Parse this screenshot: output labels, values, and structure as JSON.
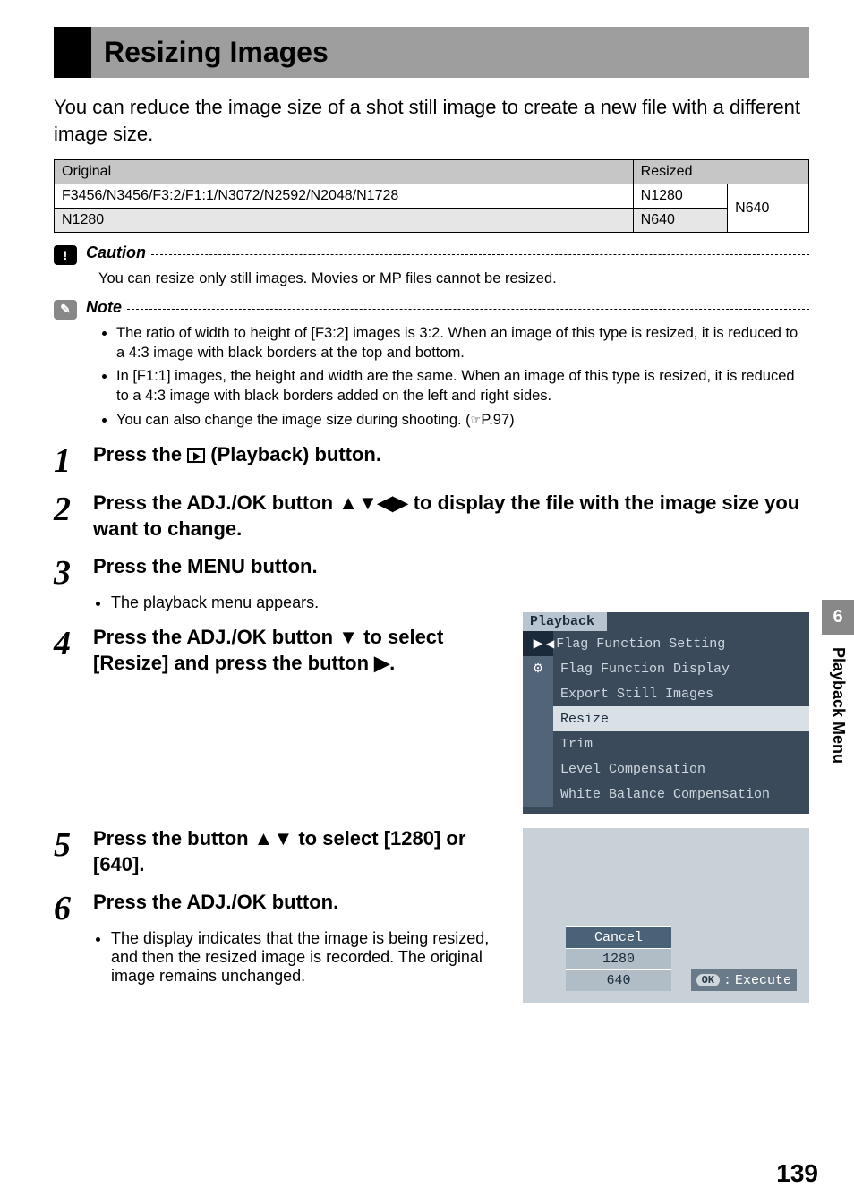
{
  "header": {
    "title": "Resizing Images"
  },
  "intro": "You can reduce the image size of a shot still image to create a new file with a different image size.",
  "table": {
    "col_original": "Original",
    "col_resized": "Resized",
    "row1_orig": "F3456/N3456/F3:2/F1:1/N3072/N2592/N2048/N1728",
    "row1_r1": "N1280",
    "row1_r2": "N640",
    "row2_orig": "N1280",
    "row2_resized": "N640"
  },
  "caution": {
    "label": "Caution",
    "body": "You can resize only still images. Movies or MP files cannot be resized."
  },
  "note": {
    "label": "Note",
    "li1": "The ratio of width to height of [F3:2] images is 3:2. When an image of this type is resized, it is reduced to a 4:3 image with black borders at the top and bottom.",
    "li2": "In [F1:1] images, the height and width are the same. When an image of this type is resized, it is reduced to a 4:3 image with black borders added on the left and right sides.",
    "li3a": "You can also change the image size during shooting. (",
    "li3b": "P.97)"
  },
  "steps": {
    "s1a": "Press the ",
    "s1b": " (Playback) button.",
    "s2": "Press the ADJ./OK button ▲▼◀▶ to display the file with the image size you want to change.",
    "s3": "Press the MENU button.",
    "s3sub": "The playback menu appears.",
    "s4": "Press the ADJ./OK button ▼ to select [Resize] and press the button ▶.",
    "s5": "Press the button ▲▼ to select [1280] or [640].",
    "s6": "Press the ADJ./OK button.",
    "s6sub": "The display indicates that the image is being resized, and then the resized image is recorded. The original image remains unchanged."
  },
  "menu": {
    "tab": "Playback",
    "items": {
      "i0": "Flag Function Setting",
      "i1": "Flag Function Display",
      "i2": "Export Still Images",
      "i3": "Resize",
      "i4": "Trim",
      "i5": "Level Compensation",
      "i6": "White Balance Compensation"
    }
  },
  "options": {
    "o0": "Cancel",
    "o1": "1280",
    "o2": "640",
    "ok": "OK",
    "exec": "Execute"
  },
  "sidetab": {
    "num": "6",
    "label": "Playback Menu"
  },
  "page_num": "139"
}
